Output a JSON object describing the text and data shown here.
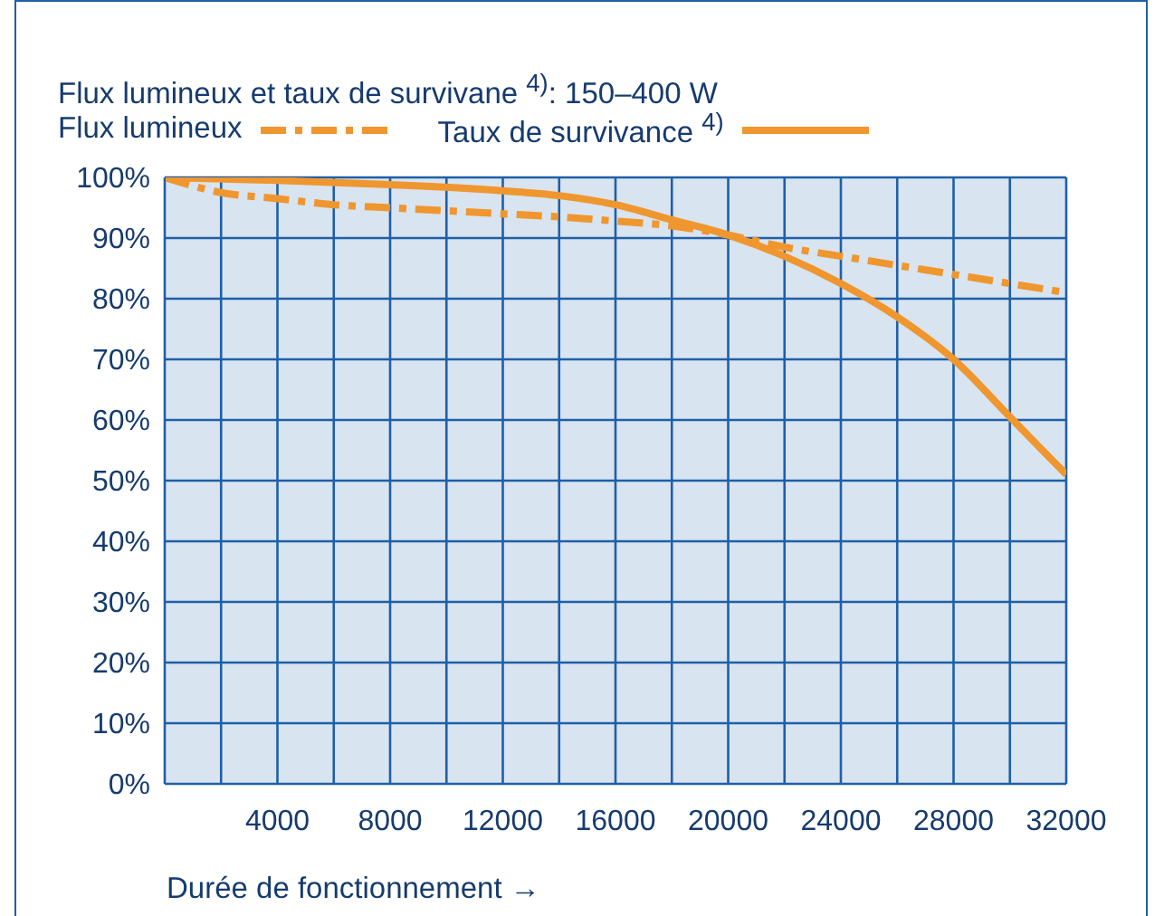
{
  "chart_data": {
    "type": "line",
    "title": "Flux lumineux et taux de survivane $^{4)}$: 150–400 W",
    "xlabel": "Durée de fonctionnement →",
    "legend": "top left",
    "grid": true,
    "marker": "none",
    "xlim": [
      0,
      32000
    ],
    "xticks": [
      {
        "value": 0,
        "label": null
      },
      {
        "value": 2000,
        "label": null
      },
      4000,
      {
        "value": 6000,
        "label": null
      },
      8000,
      {
        "value": 10000,
        "label": null
      },
      12000,
      {
        "value": 14000,
        "label": null
      },
      16000,
      {
        "value": 18000,
        "label": null
      },
      20000,
      {
        "value": 22000,
        "label": null
      },
      24000,
      {
        "value": 26000,
        "label": null
      },
      28000,
      {
        "value": 30000,
        "label": null
      },
      32000
    ],
    "ylim": [
      0,
      100
    ],
    "yticks": [
      {
        "value": 0,
        "label": "0%"
      },
      {
        "value": 10,
        "label": "10%"
      },
      {
        "value": 20,
        "label": "20%"
      },
      {
        "value": 30,
        "label": "30%"
      },
      {
        "value": 40,
        "label": "40%"
      },
      {
        "value": 50,
        "label": "50%"
      },
      {
        "value": 60,
        "label": "60%"
      },
      {
        "value": 70,
        "label": "70%"
      },
      {
        "value": 80,
        "label": "80%"
      },
      {
        "value": 90,
        "label": "90%"
      },
      {
        "value": 100,
        "label": "100%"
      }
    ],
    "series": [
      {
        "name": "Flux lumineux",
        "color": "#f0962e",
        "line_style": "dashed",
        "x": [
          0,
          2000,
          4000,
          6000,
          8000,
          10000,
          12000,
          14000,
          16000,
          18000,
          20000,
          22000,
          24000,
          26000,
          28000,
          30000,
          32000
        ],
        "values": [
          100,
          97.5,
          96.5,
          95.5,
          95,
          94.5,
          94,
          93.5,
          92.8,
          92,
          90.5,
          88.5,
          87,
          85.5,
          84,
          82.5,
          81
        ]
      },
      {
        "name": "Taux de survivance $^{4)}$",
        "color": "#f0962e",
        "line_style": "solid",
        "x": [
          0,
          4000,
          8000,
          12000,
          14000,
          16000,
          18000,
          20000,
          22000,
          24000,
          26000,
          28000,
          30000,
          32000
        ],
        "values": [
          100,
          99.5,
          98.8,
          97.8,
          97,
          95.5,
          93,
          90.5,
          87,
          82.5,
          77,
          70,
          60.5,
          51
        ]
      }
    ]
  }
}
